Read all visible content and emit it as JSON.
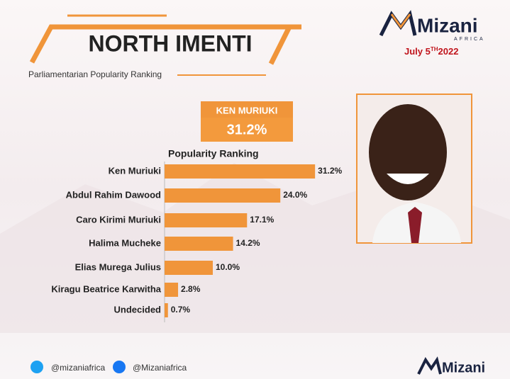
{
  "chart_data": {
    "type": "bar",
    "orientation": "horizontal",
    "title": "NORTH IMENTI",
    "subtitle": "Parliamentarian Popularity Ranking",
    "highlight": {
      "name": "KEN MURIUKI",
      "label": "31.2%"
    },
    "chart_title": "Popularity Ranking",
    "categories": [
      "Ken Muriuki",
      "Abdul Rahim Dawood",
      "Caro Kirimi Muriuki",
      "Halima Mucheke",
      "Elias Murega Julius",
      "Kiragu Beatrice Karwitha",
      "Undecided"
    ],
    "values": [
      31.2,
      24.0,
      17.1,
      14.2,
      10.0,
      2.8,
      0.7
    ],
    "value_labels": [
      "31.2%",
      "24.0%",
      "17.1%",
      "14.2%",
      "10.0%",
      "2.8%",
      "0.7%"
    ],
    "color": "#f0953a",
    "logo": {
      "name": "Mizani",
      "sub": "AFRICA"
    },
    "date": {
      "day": "July 5",
      "suffix": "TH",
      "year": "2022"
    },
    "social": {
      "twitter": "@mizaniafrica",
      "facebook": "@Mizaniafrica"
    }
  }
}
